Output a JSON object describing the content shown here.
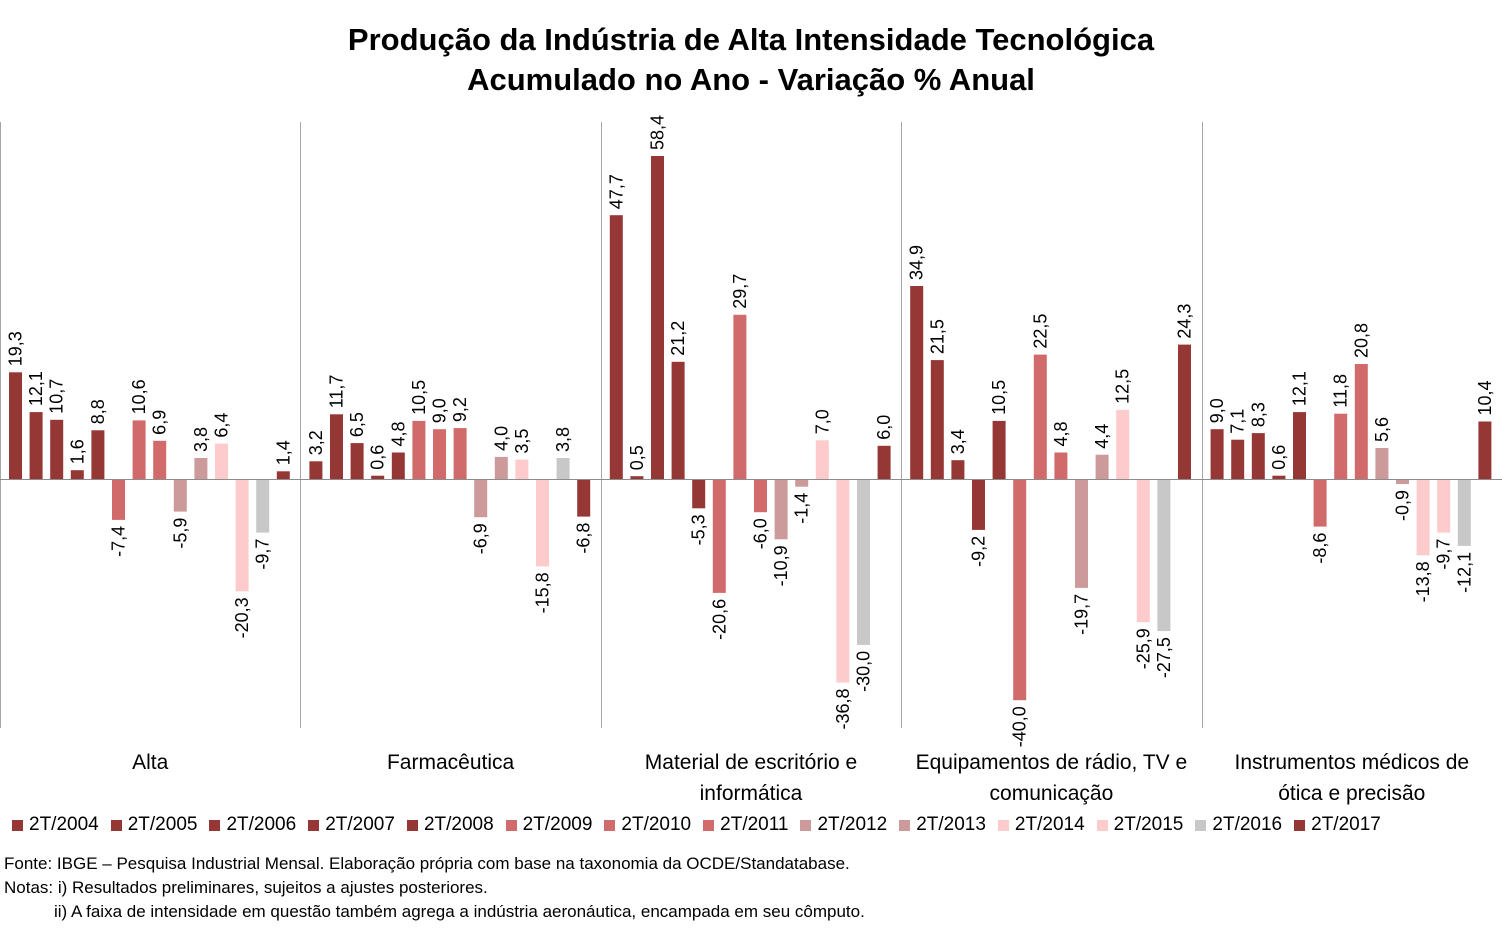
{
  "chart_data": {
    "type": "bar",
    "title_lines": [
      "Produção da Indústria de Alta Intensidade Tecnológica",
      "Acumulado no Ano - Variação % Anual"
    ],
    "categories": [
      "Alta",
      "Farmacêutica",
      "Material de escritório e informática",
      "Equipamentos de rádio, TV e comunicação",
      "Instrumentos médicos de ótica e precisão"
    ],
    "category_label_lines": [
      [
        "Alta"
      ],
      [
        "Farmacêutica"
      ],
      [
        "Material de escritório e",
        "informática"
      ],
      [
        "Equipamentos de rádio, TV e",
        "comunicação"
      ],
      [
        "Instrumentos médicos de",
        "ótica e precisão"
      ]
    ],
    "series": [
      {
        "name": "2T/2004",
        "color": "#953735",
        "values": [
          19.3,
          3.2,
          47.7,
          34.9,
          9.0
        ],
        "labels": [
          "19,3",
          "3,2",
          "47,7",
          "34,9",
          "9,0"
        ]
      },
      {
        "name": "2T/2005",
        "color": "#953735",
        "values": [
          12.1,
          11.7,
          0.5,
          21.5,
          7.1
        ],
        "labels": [
          "12,1",
          "11,7",
          "0,5",
          "21,5",
          "7,1"
        ]
      },
      {
        "name": "2T/2006",
        "color": "#953735",
        "values": [
          10.7,
          6.5,
          58.4,
          3.4,
          8.3
        ],
        "labels": [
          "10,7",
          "6,5",
          "58,4",
          "3,4",
          "8,3"
        ]
      },
      {
        "name": "2T/2007",
        "color": "#953735",
        "values": [
          1.6,
          0.6,
          21.2,
          -9.2,
          0.6
        ],
        "labels": [
          "1,6",
          "0,6",
          "21,2",
          "-9,2",
          "0,6"
        ]
      },
      {
        "name": "2T/2008",
        "color": "#953735",
        "values": [
          8.8,
          4.8,
          -5.3,
          10.5,
          12.1
        ],
        "labels": [
          "8,8",
          "4,8",
          "-5,3",
          "10,5",
          "12,1"
        ]
      },
      {
        "name": "2T/2009",
        "color": "#d16a6a",
        "values": [
          -7.4,
          10.5,
          -20.6,
          -40.0,
          -8.6
        ],
        "labels": [
          "-7,4",
          "10,5",
          "-20,6",
          "-40,0",
          "-8,6"
        ]
      },
      {
        "name": "2T/2010",
        "color": "#d16a6a",
        "values": [
          10.6,
          9.0,
          29.7,
          22.5,
          11.8
        ],
        "labels": [
          "10,6",
          "9,0",
          "29,7",
          "22,5",
          "11,8"
        ]
      },
      {
        "name": "2T/2011",
        "color": "#d16a6a",
        "values": [
          6.9,
          9.2,
          -6.0,
          4.8,
          20.8
        ],
        "labels": [
          "6,9",
          "9,2",
          "-6,0",
          "4,8",
          "20,8"
        ]
      },
      {
        "name": "2T/2012",
        "color": "#cc9a9a",
        "values": [
          -5.9,
          -6.9,
          -10.9,
          -19.7,
          5.6
        ],
        "labels": [
          "-5,9",
          "-6,9",
          "-10,9",
          "-19,7",
          "5,6"
        ]
      },
      {
        "name": "2T/2013",
        "color": "#cc9a9a",
        "values": [
          3.8,
          4.0,
          -1.4,
          4.4,
          -0.9
        ],
        "labels": [
          "3,8",
          "4,0",
          "-1,4",
          "4,4",
          "-0,9"
        ]
      },
      {
        "name": "2T/2014",
        "color": "#fdcbcb",
        "values": [
          6.4,
          3.5,
          7.0,
          12.5,
          -13.8
        ],
        "labels": [
          "6,4",
          "3,5",
          "7,0",
          "12,5",
          "-13,8"
        ]
      },
      {
        "name": "2T/2015",
        "color": "#fdcbcb",
        "values": [
          -20.3,
          -15.8,
          -36.8,
          -25.9,
          -9.7
        ],
        "labels": [
          "-20,3",
          "-15,8",
          "-36,8",
          "-25,9",
          "-9,7"
        ]
      },
      {
        "name": "2T/2016",
        "color": "#c8c8c8",
        "values": [
          -9.7,
          3.8,
          -30.0,
          -27.5,
          -12.1
        ],
        "labels": [
          "-9,7",
          "3,8",
          "-30,0",
          "-27,5",
          "-12,1"
        ]
      },
      {
        "name": "2T/2017",
        "color": "#953735",
        "values": [
          1.4,
          -6.8,
          6.0,
          24.3,
          10.4
        ],
        "labels": [
          "1,4",
          "-6,8",
          "6,0",
          "24,3",
          "10,4"
        ]
      }
    ],
    "xlabel": "",
    "ylabel": "",
    "ylim": [
      -45,
      65
    ],
    "grid": false,
    "legend_position": "bottom",
    "data_labels_rotated": true
  },
  "notes": {
    "source": "Fonte: IBGE – Pesquisa Industrial Mensal. Elaboração própria com base na taxonomia da OCDE/Standatabase.",
    "note_1": "Notas: i) Resultados preliminares, sujeitos a ajustes posteriores.",
    "note_2": "ii) A faixa de intensidade em questão também agrega a indústria aeronáutica, encampada em seu cômputo."
  }
}
